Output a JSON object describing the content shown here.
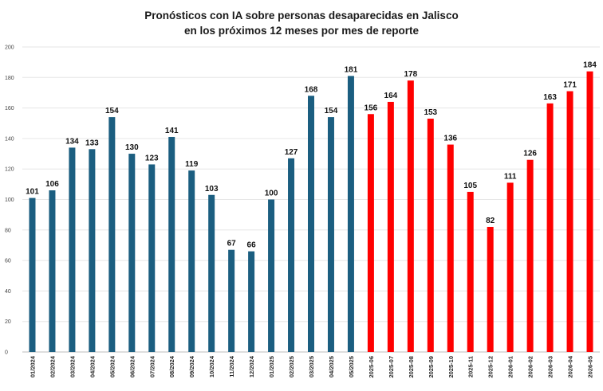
{
  "chart_data": {
    "type": "bar",
    "title": "Pronósticos con IA sobre personas desaparecidas en Jalisco",
    "subtitle": "en los próximos 12 meses por mes de reporte",
    "xlabel": "",
    "ylabel": "",
    "ylim": [
      0,
      200
    ],
    "yticks": [
      0,
      20,
      40,
      60,
      80,
      100,
      120,
      140,
      160,
      180,
      200
    ],
    "grid": true,
    "legend": "none",
    "categories": [
      "01/2024",
      "02/2024",
      "03/2024",
      "04/2024",
      "05/2024",
      "06/2024",
      "07/2024",
      "08/2024",
      "09/2024",
      "10/2024",
      "11/2024",
      "12/2024",
      "01/2025",
      "02/2025",
      "03/2025",
      "04/2025",
      "05/2025",
      "2025-06",
      "2025-07",
      "2025-08",
      "2025-09",
      "2025-10",
      "2025-11",
      "2025-12",
      "2026-01",
      "2026-02",
      "2026-03",
      "2026-04",
      "2026-05"
    ],
    "values": [
      101,
      106,
      134,
      133,
      154,
      130,
      123,
      141,
      119,
      103,
      67,
      66,
      100,
      127,
      168,
      154,
      181,
      156,
      164,
      178,
      153,
      136,
      105,
      82,
      111,
      126,
      163,
      171,
      184
    ],
    "colors": {
      "historical": "#1b5e80",
      "forecast": "#ff0000"
    },
    "forecast_start_index": 17
  }
}
